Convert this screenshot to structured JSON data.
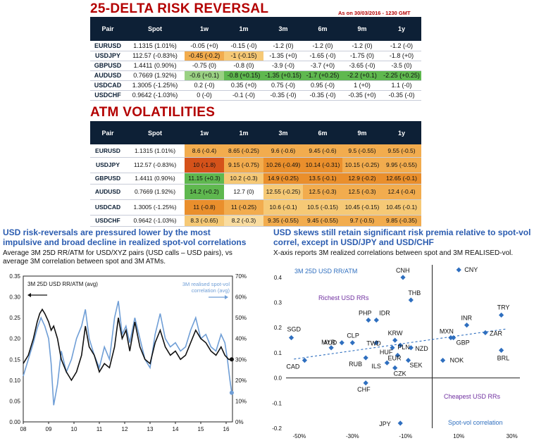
{
  "rr": {
    "title": "25-DELTA RISK REVERSAL",
    "asof": "As on 30/03/2016 - 1230 GMT",
    "headers": [
      "Pair",
      "Spot",
      "1w",
      "1m",
      "3m",
      "6m",
      "9m",
      "1y"
    ],
    "rows": [
      {
        "pair": "EURUSD",
        "spot": "1.1315 (1.01%)",
        "vals": [
          "-0.05 (+0)",
          "-0.15 (-0)",
          "-1.2 (0)",
          "-1.2 (0)",
          "-1.2 (0)",
          "-1.2 (-0)"
        ]
      },
      {
        "pair": "USDJPY",
        "spot": "112.57 (-0.83%)",
        "vals": [
          "-0.45 (-0.2)",
          "-1 (-0.15)",
          "-1.35 (+0)",
          "-1.65 (-0)",
          "-1.75 (0)",
          "-1.8 (+0)"
        ]
      },
      {
        "pair": "GBPUSD",
        "spot": "1.4411 (0.90%)",
        "vals": [
          "-0.75 (0)",
          "-0.8 (0)",
          "-3.9 (-0)",
          "-3.7 (+0)",
          "-3.65 (-0)",
          "-3.5 (0)"
        ]
      },
      {
        "pair": "AUDUSD",
        "spot": "0.7669 (1.92%)",
        "vals": [
          "-0.6 (+0.1)",
          "-0.8 (+0.15)",
          "-1.35 (+0.15)",
          "-1.7 (+0.25)",
          "-2.2 (+0.1)",
          "-2.25 (+0.25)"
        ]
      },
      {
        "pair": "USDCAD",
        "spot": "1.3005 (-1.25%)",
        "vals": [
          "0.2 (-0)",
          "0.35 (+0)",
          "0.75 (-0)",
          "0.95 (-0)",
          "1 (+0)",
          "1.1 (-0)"
        ]
      },
      {
        "pair": "USDCHF",
        "spot": "0.9642 (-1.03%)",
        "vals": [
          "0 (-0)",
          "-0.1 (-0)",
          "-0.35 (-0)",
          "-0.35 (-0)",
          "-0.35 (+0)",
          "-0.35 (-0)"
        ]
      }
    ]
  },
  "atm": {
    "title": "ATM VOLATILITIES",
    "headers": [
      "Pair",
      "Spot",
      "1w",
      "1m",
      "3m",
      "6m",
      "9m",
      "1y"
    ],
    "rows": [
      {
        "pair": "EURUSD",
        "spot": "1.1315 (1.01%)",
        "vals": [
          "8.6 (-0.4)",
          "8.65 (-0.25)",
          "9.6 (-0.6)",
          "9.45 (-0.6)",
          "9.5 (-0.55)",
          "9.55 (-0.5)"
        ]
      },
      {
        "pair": "USDJPY",
        "spot": "112.57 (-0.83%)",
        "vals": [
          "10 (-1.8)",
          "9.15 (-0.75)",
          "10.26 (-0.49)",
          "10.14 (-0.31)",
          "10.15 (-0.25)",
          "9.95 (-0.55)"
        ]
      },
      {
        "pair": "GBPUSD",
        "spot": "1.4411 (0.90%)",
        "vals": [
          "11.15 (+0.3)",
          "10.2 (-0.3)",
          "14.9 (-0.25)",
          "13.5 (-0.1)",
          "12.9 (-0.2)",
          "12.65 (-0.1)"
        ]
      },
      {
        "pair": "AUDUSD",
        "spot": "0.7669 (1.92%)",
        "vals": [
          "14.2 (+0.2)",
          "12.7 (0)",
          "12.55 (-0.25)",
          "12.5 (-0.3)",
          "12.5 (-0.3)",
          "12.4 (-0.4)"
        ]
      },
      {
        "pair": "USDCAD",
        "spot": "1.3005 (-1.25%)",
        "vals": [
          "11 (-0.8)",
          "11 (-0.25)",
          "10.6 (-0.1)",
          "10.5 (-0.15)",
          "10.45 (-0.15)",
          "10.45 (-0.1)"
        ]
      },
      {
        "pair": "USDCHF",
        "spot": "0.9642 (-1.03%)",
        "vals": [
          "8.3 (-0.65)",
          "8.2 (-0.3)",
          "9.35 (-0.55)",
          "9.45 (-0.55)",
          "9.7 (-0.5)",
          "9.85 (-0.35)"
        ]
      }
    ]
  },
  "left_panel": {
    "caption": "USD risk-reversals are pressured lower by the most impulsive and broad decline in realized spot-vol correlations",
    "subtitle": "Average 3M 25D RR/ATM for USD/XYZ pairs (USD calls – USD pairs), vs average 3M correlation between spot and 3M ATMs."
  },
  "right_panel": {
    "caption": "USD skews still retain significant risk premia relative to spot-vol correl, except in USD/JPY and USD/CHF",
    "subtitle": "X-axis reports 3M realized correlations between spot and 3M REALISED-vol."
  },
  "chart_data": [
    {
      "type": "line",
      "title": "",
      "xlabel": "",
      "ylabel": "",
      "x_ticks": [
        "08",
        "09",
        "10",
        "11",
        "12",
        "13",
        "14",
        "15",
        "16"
      ],
      "xlim": [
        2008,
        2016.25
      ],
      "ylim_left": [
        0,
        0.35
      ],
      "ylim_right": [
        0,
        70
      ],
      "y_ticks_left": [
        "0.00",
        "0.05",
        "0.10",
        "0.15",
        "0.20",
        "0.25",
        "0.30",
        "0.35"
      ],
      "y_ticks_right": [
        "0%",
        "10%",
        "20%",
        "30%",
        "40%",
        "50%",
        "60%",
        "70%"
      ],
      "series": [
        {
          "name": "3M 25D USD RR/ATM (avg)",
          "axis": "left",
          "color": "#111111",
          "x": [
            2008.0,
            2008.2,
            2008.4,
            2008.55,
            2008.65,
            2008.75,
            2008.85,
            2009.0,
            2009.1,
            2009.2,
            2009.35,
            2009.5,
            2009.7,
            2009.9,
            2010.1,
            2010.3,
            2010.45,
            2010.6,
            2010.8,
            2011.0,
            2011.2,
            2011.4,
            2011.6,
            2011.75,
            2011.9,
            2012.05,
            2012.2,
            2012.4,
            2012.6,
            2012.8,
            2013.0,
            2013.2,
            2013.4,
            2013.6,
            2013.8,
            2014.0,
            2014.2,
            2014.4,
            2014.6,
            2014.8,
            2015.0,
            2015.2,
            2015.4,
            2015.6,
            2015.8,
            2015.95,
            2016.1,
            2016.22
          ],
          "y": [
            0.14,
            0.16,
            0.2,
            0.24,
            0.26,
            0.27,
            0.26,
            0.24,
            0.22,
            0.23,
            0.2,
            0.15,
            0.12,
            0.1,
            0.12,
            0.16,
            0.23,
            0.18,
            0.16,
            0.12,
            0.14,
            0.13,
            0.18,
            0.25,
            0.2,
            0.22,
            0.17,
            0.24,
            0.18,
            0.15,
            0.14,
            0.19,
            0.22,
            0.18,
            0.16,
            0.17,
            0.15,
            0.16,
            0.19,
            0.22,
            0.2,
            0.19,
            0.17,
            0.16,
            0.18,
            0.16,
            0.15,
            0.15
          ]
        },
        {
          "name": "3M realised spot-vol correlation (avg)",
          "axis": "right",
          "color": "#6f9ed6",
          "x": [
            2008.0,
            2008.2,
            2008.4,
            2008.55,
            2008.7,
            2008.85,
            2009.0,
            2009.1,
            2009.2,
            2009.35,
            2009.5,
            2009.7,
            2009.9,
            2010.1,
            2010.3,
            2010.45,
            2010.6,
            2010.8,
            2011.0,
            2011.2,
            2011.4,
            2011.6,
            2011.75,
            2011.9,
            2012.05,
            2012.2,
            2012.4,
            2012.6,
            2012.8,
            2013.0,
            2013.2,
            2013.4,
            2013.6,
            2013.8,
            2014.0,
            2014.2,
            2014.4,
            2014.6,
            2014.8,
            2015.0,
            2015.2,
            2015.4,
            2015.6,
            2015.8,
            2015.95,
            2016.05,
            2016.15,
            2016.22
          ],
          "y": [
            22,
            30,
            38,
            45,
            50,
            46,
            40,
            28,
            8,
            18,
            34,
            24,
            30,
            40,
            46,
            54,
            40,
            32,
            26,
            36,
            30,
            50,
            58,
            42,
            46,
            38,
            50,
            40,
            30,
            26,
            42,
            52,
            40,
            36,
            38,
            34,
            36,
            44,
            50,
            40,
            42,
            36,
            34,
            42,
            38,
            30,
            20,
            14
          ]
        }
      ]
    },
    {
      "type": "scatter",
      "title": "",
      "xlabel": "",
      "ylabel": "",
      "xlim": [
        -0.55,
        0.33
      ],
      "ylim": [
        -0.2,
        0.45
      ],
      "x_ticks": [
        "-50%",
        "-30%",
        "-10%",
        "10%",
        "30%"
      ],
      "y_ticks": [
        "0.4",
        "0.3",
        "0.2",
        "0.1",
        "0.0",
        "-0.1",
        "-0.2"
      ],
      "annotations": [
        "3M 25D USD RR/ATM",
        "Richest USD RRs",
        "Cheapest USD RRs",
        "Spot-vol correlation"
      ],
      "points": [
        {
          "label": "CNY",
          "x": 0.1,
          "y": 0.43
        },
        {
          "label": "CNH",
          "x": -0.11,
          "y": 0.4
        },
        {
          "label": "THB",
          "x": -0.08,
          "y": 0.31
        },
        {
          "label": "TRY",
          "x": 0.26,
          "y": 0.25
        },
        {
          "label": "INR",
          "x": 0.13,
          "y": 0.21
        },
        {
          "label": "MXN",
          "x": 0.07,
          "y": 0.16
        },
        {
          "label": "GBP",
          "x": 0.08,
          "y": 0.16
        },
        {
          "label": "ZAR",
          "x": 0.2,
          "y": 0.18
        },
        {
          "label": "BRL",
          "x": 0.26,
          "y": 0.11
        },
        {
          "label": "NOK",
          "x": 0.04,
          "y": 0.07
        },
        {
          "label": "SGD",
          "x": -0.53,
          "y": 0.16
        },
        {
          "label": "MYR",
          "x": -0.38,
          "y": 0.12
        },
        {
          "label": "AUD",
          "x": -0.34,
          "y": 0.14
        },
        {
          "label": "PHP",
          "x": -0.24,
          "y": 0.23
        },
        {
          "label": "IDR",
          "x": -0.21,
          "y": 0.23
        },
        {
          "label": "CLP",
          "x": -0.3,
          "y": 0.14
        },
        {
          "label": "TWD",
          "x": -0.21,
          "y": 0.14
        },
        {
          "label": "KRW",
          "x": -0.14,
          "y": 0.15
        },
        {
          "label": "HUF",
          "x": -0.15,
          "y": 0.12
        },
        {
          "label": "PLN",
          "x": -0.12,
          "y": 0.13
        },
        {
          "label": "NZD",
          "x": -0.08,
          "y": 0.12
        },
        {
          "label": "EUR",
          "x": -0.13,
          "y": 0.09
        },
        {
          "label": "ILS",
          "x": -0.17,
          "y": 0.06
        },
        {
          "label": "SEK",
          "x": -0.09,
          "y": 0.07
        },
        {
          "label": "CZK",
          "x": -0.14,
          "y": 0.04
        },
        {
          "label": "CAD",
          "x": -0.48,
          "y": 0.07
        },
        {
          "label": "RUB",
          "x": -0.25,
          "y": 0.08
        },
        {
          "label": "CHF",
          "x": -0.25,
          "y": -0.02
        },
        {
          "label": "JPY",
          "x": -0.12,
          "y": -0.18
        }
      ],
      "trendline": {
        "x": [
          -0.52,
          0.28
        ],
        "y": [
          0.075,
          0.195
        ]
      }
    }
  ]
}
